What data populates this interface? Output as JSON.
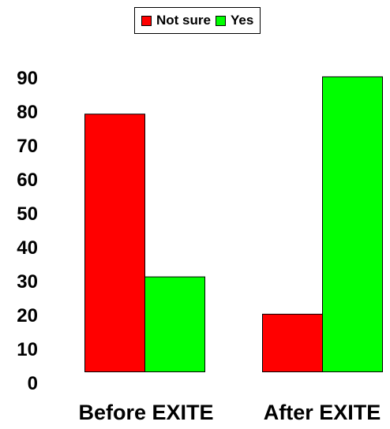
{
  "chart_data": {
    "type": "bar",
    "categories": [
      "Before EXITE",
      "After EXITE"
    ],
    "series": [
      {
        "name": "Not sure",
        "color": "#ff0000",
        "values": [
          76,
          17
        ]
      },
      {
        "name": "Yes",
        "color": "#00ff00",
        "values": [
          28,
          87
        ]
      }
    ],
    "ylim": [
      0,
      90
    ],
    "yticks": [
      "0",
      "10",
      "20",
      "30",
      "40",
      "50",
      "60",
      "70",
      "80",
      "90"
    ],
    "grid": false,
    "legend_position": "top-center"
  }
}
